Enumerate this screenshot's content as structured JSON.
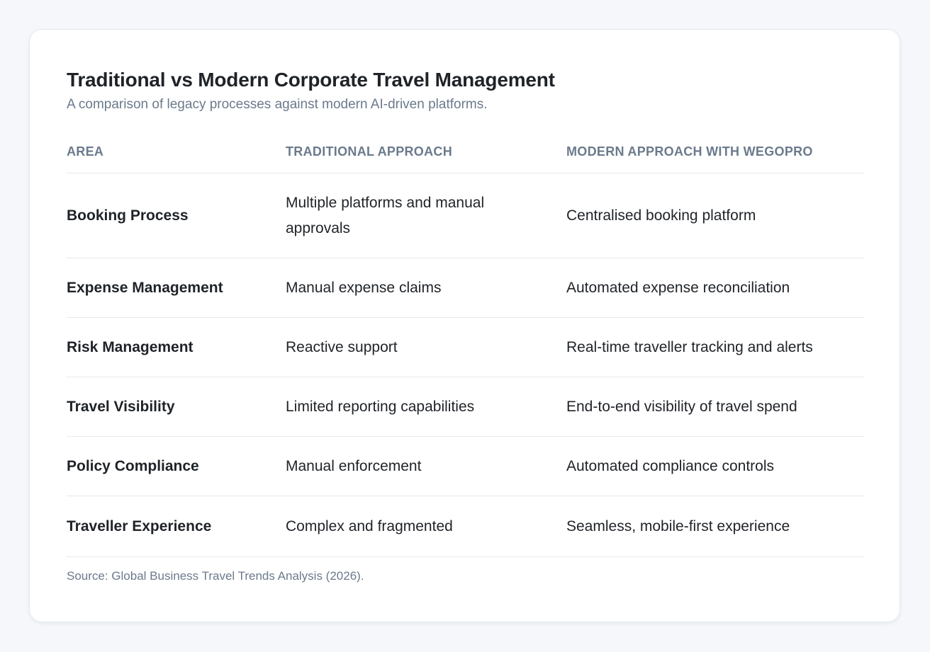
{
  "title": "Traditional vs Modern Corporate Travel Management",
  "subtitle": "A comparison of legacy processes against modern AI-driven platforms.",
  "table": {
    "headers": [
      "Area",
      "Traditional Approach",
      "Modern Approach with Wegopro"
    ],
    "rows": [
      [
        "Booking Process",
        "Multiple platforms and manual approvals",
        "Centralised booking platform"
      ],
      [
        "Expense Management",
        "Manual expense claims",
        "Automated expense reconciliation"
      ],
      [
        "Risk Management",
        "Reactive support",
        "Real-time traveller tracking and alerts"
      ],
      [
        "Travel Visibility",
        "Limited reporting capabilities",
        "End-to-end visibility of travel spend"
      ],
      [
        "Policy Compliance",
        "Manual enforcement",
        "Automated compliance controls"
      ],
      [
        "Traveller Experience",
        "Complex and fragmented",
        "Seamless, mobile-first experience"
      ]
    ]
  },
  "source": "Source: Global Business Travel Trends Analysis (2026).",
  "colors": {
    "background": "#f5f7fa",
    "card": "#ffffff",
    "text": "#1f2328",
    "muted": "#6b7a8c",
    "divider": "#e6e9ee"
  }
}
